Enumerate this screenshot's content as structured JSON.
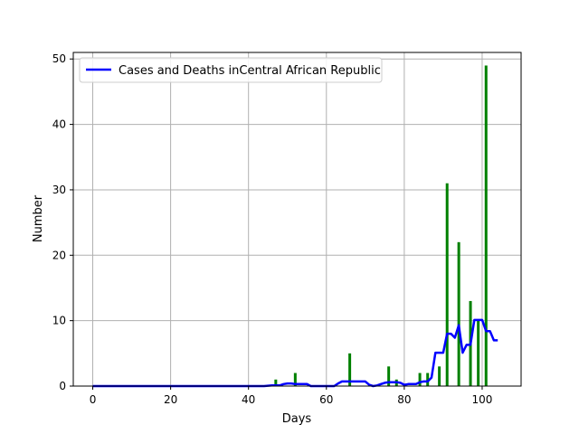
{
  "chart_data": {
    "type": "bar",
    "xlabel": "Days",
    "ylabel": "Number",
    "xlim": [
      -5,
      110
    ],
    "ylim": [
      0,
      51
    ],
    "x_ticks": [
      0,
      20,
      40,
      60,
      80,
      100
    ],
    "y_ticks": [
      0,
      10,
      20,
      30,
      40,
      50
    ],
    "grid": true,
    "legend_position": "upper-left",
    "colors": {
      "bars": "#008000",
      "line": "#0000ff"
    },
    "bars": {
      "x": [
        47,
        52,
        66,
        76,
        78,
        84,
        86,
        89,
        91,
        94,
        97,
        99,
        101
      ],
      "values": [
        1,
        2,
        5,
        3,
        1,
        2,
        2,
        3,
        31,
        22,
        13,
        10,
        49
      ]
    },
    "series": [
      {
        "name": "Cases and Deaths inCentral African Republic",
        "type": "line",
        "x": [
          0,
          40,
          44,
          46,
          48,
          49,
          50,
          51,
          52,
          53,
          54,
          55,
          56,
          62,
          63,
          64,
          65,
          66,
          67,
          68,
          69,
          70,
          71,
          72,
          73,
          74,
          75,
          76,
          77,
          78,
          79,
          80,
          81,
          82,
          83,
          84,
          85,
          86,
          87,
          88,
          89,
          90,
          91,
          92,
          93,
          94,
          95,
          96,
          97,
          98,
          99,
          100,
          101,
          102,
          103,
          104
        ],
        "y": [
          0,
          0,
          0,
          0.1,
          0.1,
          0.3,
          0.4,
          0.4,
          0.3,
          0.3,
          0.3,
          0.3,
          0,
          0,
          0.4,
          0.7,
          0.7,
          0.7,
          0.7,
          0.7,
          0.7,
          0.7,
          0.2,
          0,
          0.1,
          0.3,
          0.5,
          0.6,
          0.6,
          0.6,
          0.5,
          0.2,
          0.3,
          0.3,
          0.3,
          0.6,
          0.7,
          0.7,
          1.3,
          5.1,
          5.1,
          5.1,
          8,
          8,
          7.4,
          9.3,
          5.1,
          6.3,
          6.3,
          10.1,
          10.1,
          10.1,
          8.4,
          8.4,
          7,
          7
        ]
      }
    ]
  }
}
